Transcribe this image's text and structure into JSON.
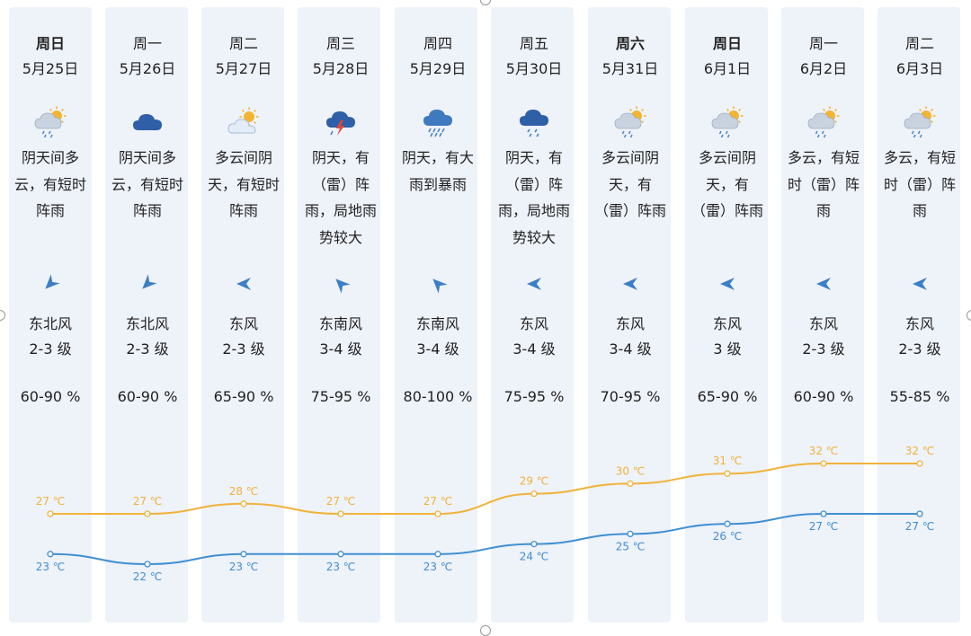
{
  "chart_data": {
    "type": "line",
    "categories": [
      "5月25日",
      "5月26日",
      "5月27日",
      "5月28日",
      "5月29日",
      "5月30日",
      "5月31日",
      "6月1日",
      "6月2日",
      "6月3日"
    ],
    "series": [
      {
        "values": [
          27,
          27,
          28,
          27,
          27,
          29,
          30,
          31,
          32,
          32
        ],
        "labels": [
          "27 ℃",
          "27 ℃",
          "28 ℃",
          "27 ℃",
          "27 ℃",
          "29 ℃",
          "30 ℃",
          "31 ℃",
          "32 ℃",
          "32 ℃"
        ]
      },
      {
        "values": [
          23,
          22,
          23,
          23,
          23,
          24,
          25,
          26,
          27,
          27
        ],
        "labels": [
          "23 ℃",
          "22 ℃",
          "23 ℃",
          "23 ℃",
          "23 ℃",
          "24 ℃",
          "25 ℃",
          "26 ℃",
          "27 ℃",
          "27 ℃"
        ]
      }
    ],
    "colors": {
      "high": "#f0b33a",
      "low": "#3f8fd2"
    }
  },
  "days": [
    {
      "name": "周日",
      "date": "5月25日",
      "desc": [
        "阴天间多",
        "云，有短时",
        "阵雨"
      ],
      "icon": "partly-cloudy-rain-icon",
      "wind_dir": "东北风",
      "wind_level": "2-3 级",
      "humidity": "60-90 %",
      "bold": true,
      "arrow_angle": 225
    },
    {
      "name": "周一",
      "date": "5月26日",
      "desc": [
        "阴天间多",
        "云，有短时",
        "阵雨"
      ],
      "icon": "cloudy-icon",
      "wind_dir": "东北风",
      "wind_level": "2-3 级",
      "humidity": "60-90 %",
      "bold": false,
      "arrow_angle": 225
    },
    {
      "name": "周二",
      "date": "5月27日",
      "desc": [
        "多云间阴",
        "天，有短时",
        "阵雨"
      ],
      "icon": "sun-cloud-icon",
      "wind_dir": "东风",
      "wind_level": "2-3 级",
      "humidity": "65-90 %",
      "bold": false,
      "arrow_angle": 270
    },
    {
      "name": "周三",
      "date": "5月28日",
      "desc": [
        "阴天，有",
        "（雷）阵",
        "雨，局地雨",
        "势较大"
      ],
      "icon": "thunderstorm-icon",
      "wind_dir": "东南风",
      "wind_level": "3-4 级",
      "humidity": "75-95 %",
      "bold": false,
      "arrow_angle": 315
    },
    {
      "name": "周四",
      "date": "5月29日",
      "desc": [
        "阴天，有大",
        "雨到暴雨"
      ],
      "icon": "heavy-rain-icon",
      "wind_dir": "东南风",
      "wind_level": "3-4 级",
      "humidity": "80-100 %",
      "bold": false,
      "arrow_angle": 315
    },
    {
      "name": "周五",
      "date": "5月30日",
      "desc": [
        "阴天，有",
        "（雷）阵",
        "雨，局地雨",
        "势较大"
      ],
      "icon": "rain-cloud-icon",
      "wind_dir": "东风",
      "wind_level": "3-4 级",
      "humidity": "75-95 %",
      "bold": false,
      "arrow_angle": 270
    },
    {
      "name": "周六",
      "date": "5月31日",
      "desc": [
        "多云间阴",
        "天，有",
        "（雷）阵雨"
      ],
      "icon": "partly-cloudy-rain-icon",
      "wind_dir": "东风",
      "wind_level": "3-4 级",
      "humidity": "70-95 %",
      "bold": true,
      "arrow_angle": 270
    },
    {
      "name": "周日",
      "date": "6月1日",
      "desc": [
        "多云间阴",
        "天，有",
        "（雷）阵雨"
      ],
      "icon": "partly-cloudy-rain-icon",
      "wind_dir": "东风",
      "wind_level": "3 级",
      "humidity": "65-90 %",
      "bold": true,
      "arrow_angle": 270
    },
    {
      "name": "周一",
      "date": "6月2日",
      "desc": [
        "多云，有短",
        "时（雷）阵",
        "雨"
      ],
      "icon": "partly-cloudy-rain-icon",
      "wind_dir": "东风",
      "wind_level": "2-3 级",
      "humidity": "60-90 %",
      "bold": false,
      "arrow_angle": 270
    },
    {
      "name": "周二",
      "date": "6月3日",
      "desc": [
        "多云，有短",
        "时（雷）阵",
        "雨"
      ],
      "icon": "partly-cloudy-rain-icon",
      "wind_dir": "东风",
      "wind_level": "2-3 级",
      "humidity": "55-85 %",
      "bold": false,
      "arrow_angle": 270
    }
  ]
}
